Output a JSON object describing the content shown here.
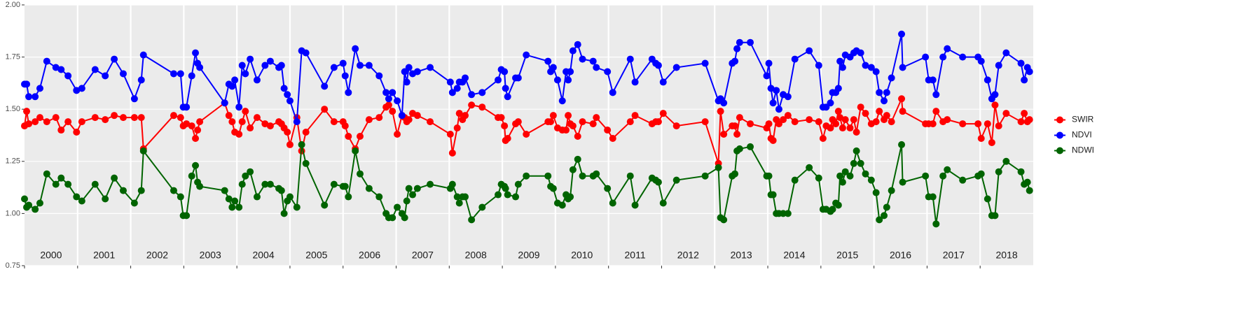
{
  "chart_data": {
    "type": "line",
    "x": [
      2000.0,
      2000.04,
      2000.08,
      2000.2,
      2000.29,
      2000.42,
      2000.59,
      2000.69,
      2000.82,
      2000.98,
      2001.08,
      2001.33,
      2001.52,
      2001.69,
      2001.86,
      2002.07,
      2002.2,
      2002.24,
      2002.81,
      2002.94,
      2002.99,
      2003.05,
      2003.15,
      2003.22,
      2003.26,
      2003.3,
      2003.77,
      2003.85,
      2003.91,
      2003.96,
      2004.04,
      2004.1,
      2004.16,
      2004.25,
      2004.38,
      2004.53,
      2004.63,
      2004.79,
      2004.84,
      2004.89,
      2004.95,
      2005.0,
      2005.13,
      2005.22,
      2005.3,
      2005.65,
      2005.83,
      2006.0,
      2006.04,
      2006.1,
      2006.23,
      2006.32,
      2006.49,
      2006.68,
      2006.81,
      2006.86,
      2006.93,
      2007.02,
      2007.11,
      2007.16,
      2007.2,
      2007.24,
      2007.31,
      2007.4,
      2007.64,
      2008.02,
      2008.06,
      2008.15,
      2008.19,
      2008.25,
      2008.3,
      2008.42,
      2008.62,
      2008.92,
      2008.98,
      2009.04,
      2009.06,
      2009.1,
      2009.25,
      2009.3,
      2009.45,
      2009.86,
      2009.91,
      2009.96,
      2010.04,
      2010.13,
      2010.2,
      2010.24,
      2010.28,
      2010.33,
      2010.42,
      2010.51,
      2010.71,
      2010.77,
      2010.98,
      2011.08,
      2011.41,
      2011.5,
      2011.82,
      2011.89,
      2011.94,
      2012.03,
      2012.28,
      2012.82,
      2013.07,
      2013.11,
      2013.17,
      2013.33,
      2013.38,
      2013.42,
      2013.47,
      2013.67,
      2013.98,
      2014.02,
      2014.06,
      2014.1,
      2014.16,
      2014.21,
      2014.29,
      2014.38,
      2014.51,
      2014.78,
      2014.96,
      2015.04,
      2015.1,
      2015.18,
      2015.22,
      2015.28,
      2015.33,
      2015.36,
      2015.41,
      2015.46,
      2015.55,
      2015.62,
      2015.67,
      2015.75,
      2015.84,
      2015.95,
      2016.04,
      2016.1,
      2016.19,
      2016.24,
      2016.33,
      2016.52,
      2016.54,
      2016.97,
      2017.03,
      2017.11,
      2017.17,
      2017.3,
      2017.38,
      2017.67,
      2017.96,
      2018.02,
      2018.14,
      2018.22,
      2018.28,
      2018.35,
      2018.49,
      2018.77,
      2018.83,
      2018.89,
      2018.93
    ],
    "series": [
      {
        "name": "SWIR",
        "color": "#ff0000",
        "values": [
          1.42,
          1.49,
          1.43,
          1.44,
          1.46,
          1.44,
          1.46,
          1.4,
          1.44,
          1.39,
          1.44,
          1.46,
          1.45,
          1.47,
          1.46,
          1.46,
          1.46,
          1.31,
          1.47,
          1.46,
          1.42,
          1.43,
          1.42,
          1.36,
          1.4,
          1.44,
          1.53,
          1.47,
          1.44,
          1.39,
          1.38,
          1.44,
          1.49,
          1.41,
          1.46,
          1.43,
          1.42,
          1.44,
          1.43,
          1.41,
          1.39,
          1.33,
          1.46,
          1.3,
          1.39,
          1.5,
          1.44,
          1.44,
          1.42,
          1.37,
          1.31,
          1.37,
          1.45,
          1.46,
          1.51,
          1.52,
          1.49,
          1.38,
          1.47,
          1.46,
          1.44,
          1.45,
          1.48,
          1.47,
          1.44,
          1.38,
          1.29,
          1.41,
          1.48,
          1.45,
          1.47,
          1.52,
          1.51,
          1.46,
          1.46,
          1.42,
          1.35,
          1.36,
          1.43,
          1.44,
          1.38,
          1.44,
          1.44,
          1.47,
          1.41,
          1.4,
          1.4,
          1.47,
          1.43,
          1.42,
          1.37,
          1.44,
          1.43,
          1.46,
          1.4,
          1.36,
          1.44,
          1.47,
          1.43,
          1.44,
          1.44,
          1.48,
          1.42,
          1.44,
          1.24,
          1.49,
          1.38,
          1.42,
          1.42,
          1.38,
          1.46,
          1.43,
          1.41,
          1.43,
          1.36,
          1.35,
          1.45,
          1.43,
          1.45,
          1.47,
          1.44,
          1.45,
          1.44,
          1.36,
          1.42,
          1.41,
          1.45,
          1.43,
          1.49,
          1.46,
          1.41,
          1.45,
          1.41,
          1.45,
          1.39,
          1.51,
          1.48,
          1.43,
          1.44,
          1.49,
          1.45,
          1.47,
          1.44,
          1.55,
          1.49,
          1.43,
          1.43,
          1.43,
          1.49,
          1.44,
          1.45,
          1.43,
          1.43,
          1.36,
          1.43,
          1.34,
          1.52,
          1.42,
          1.48,
          1.44,
          1.48,
          1.44,
          1.45
        ]
      },
      {
        "name": "NDVI",
        "color": "#0000ff",
        "values": [
          1.62,
          1.62,
          1.56,
          1.56,
          1.6,
          1.73,
          1.7,
          1.69,
          1.66,
          1.59,
          1.6,
          1.69,
          1.66,
          1.74,
          1.67,
          1.55,
          1.64,
          1.76,
          1.67,
          1.67,
          1.51,
          1.51,
          1.66,
          1.77,
          1.72,
          1.7,
          1.53,
          1.62,
          1.61,
          1.64,
          1.51,
          1.71,
          1.67,
          1.74,
          1.64,
          1.71,
          1.73,
          1.7,
          1.71,
          1.6,
          1.57,
          1.54,
          1.44,
          1.78,
          1.77,
          1.61,
          1.7,
          1.72,
          1.66,
          1.58,
          1.79,
          1.71,
          1.71,
          1.66,
          1.58,
          1.55,
          1.58,
          1.54,
          1.47,
          1.68,
          1.63,
          1.7,
          1.67,
          1.68,
          1.7,
          1.63,
          1.58,
          1.6,
          1.63,
          1.63,
          1.65,
          1.57,
          1.58,
          1.64,
          1.69,
          1.68,
          1.6,
          1.56,
          1.65,
          1.65,
          1.76,
          1.73,
          1.68,
          1.7,
          1.64,
          1.54,
          1.68,
          1.64,
          1.68,
          1.78,
          1.81,
          1.74,
          1.73,
          1.7,
          1.68,
          1.58,
          1.74,
          1.63,
          1.74,
          1.72,
          1.71,
          1.63,
          1.7,
          1.72,
          1.54,
          1.55,
          1.53,
          1.72,
          1.73,
          1.79,
          1.82,
          1.82,
          1.66,
          1.72,
          1.6,
          1.53,
          1.59,
          1.5,
          1.57,
          1.56,
          1.74,
          1.78,
          1.71,
          1.51,
          1.51,
          1.53,
          1.58,
          1.58,
          1.6,
          1.73,
          1.7,
          1.76,
          1.75,
          1.77,
          1.78,
          1.77,
          1.71,
          1.7,
          1.68,
          1.58,
          1.54,
          1.58,
          1.65,
          1.86,
          1.7,
          1.75,
          1.64,
          1.64,
          1.57,
          1.75,
          1.79,
          1.75,
          1.75,
          1.73,
          1.64,
          1.55,
          1.57,
          1.71,
          1.77,
          1.72,
          1.64,
          1.7,
          1.68
        ]
      },
      {
        "name": "NDWI",
        "color": "#006400",
        "values": [
          1.07,
          1.03,
          1.04,
          1.02,
          1.05,
          1.19,
          1.14,
          1.17,
          1.14,
          1.08,
          1.06,
          1.14,
          1.07,
          1.17,
          1.11,
          1.05,
          1.11,
          1.3,
          1.11,
          1.08,
          0.99,
          0.99,
          1.18,
          1.23,
          1.15,
          1.13,
          1.11,
          1.07,
          1.03,
          1.06,
          1.03,
          1.14,
          1.18,
          1.2,
          1.08,
          1.14,
          1.14,
          1.12,
          1.11,
          1.0,
          1.06,
          1.08,
          1.03,
          1.33,
          1.24,
          1.04,
          1.14,
          1.13,
          1.13,
          1.08,
          1.3,
          1.19,
          1.12,
          1.08,
          1.0,
          0.98,
          0.98,
          1.03,
          1.0,
          0.98,
          1.06,
          1.12,
          1.09,
          1.12,
          1.14,
          1.12,
          1.14,
          1.08,
          1.05,
          1.08,
          1.08,
          0.97,
          1.03,
          1.09,
          1.14,
          1.13,
          1.12,
          1.09,
          1.08,
          1.14,
          1.18,
          1.18,
          1.13,
          1.12,
          1.05,
          1.04,
          1.09,
          1.07,
          1.08,
          1.21,
          1.26,
          1.18,
          1.18,
          1.19,
          1.12,
          1.05,
          1.18,
          1.04,
          1.17,
          1.16,
          1.15,
          1.05,
          1.16,
          1.18,
          1.22,
          0.98,
          0.97,
          1.18,
          1.19,
          1.3,
          1.31,
          1.32,
          1.18,
          1.18,
          1.09,
          1.09,
          1.0,
          1.0,
          1.0,
          1.0,
          1.16,
          1.22,
          1.17,
          1.02,
          1.02,
          1.01,
          1.02,
          1.05,
          1.04,
          1.18,
          1.15,
          1.2,
          1.18,
          1.24,
          1.3,
          1.24,
          1.19,
          1.16,
          1.1,
          0.97,
          0.99,
          1.03,
          1.11,
          1.33,
          1.15,
          1.18,
          1.08,
          1.08,
          0.95,
          1.18,
          1.21,
          1.16,
          1.18,
          1.19,
          1.07,
          0.99,
          0.99,
          1.2,
          1.25,
          1.2,
          1.14,
          1.15,
          1.11
        ]
      }
    ],
    "xlim": [
      2000,
      2019
    ],
    "xticks": [
      2000,
      2001,
      2002,
      2003,
      2004,
      2005,
      2006,
      2007,
      2008,
      2009,
      2010,
      2011,
      2012,
      2013,
      2014,
      2015,
      2016,
      2017,
      2018
    ],
    "ylim": [
      0.75,
      2
    ],
    "yticks": [
      0.75,
      {
        "value": 1,
        "label": "1.00"
      },
      1.25,
      {
        "value": 1.5,
        "label": "1.50"
      },
      1.75,
      {
        "value": 2,
        "label": "2.00"
      }
    ],
    "grid": true,
    "legend": "right"
  }
}
